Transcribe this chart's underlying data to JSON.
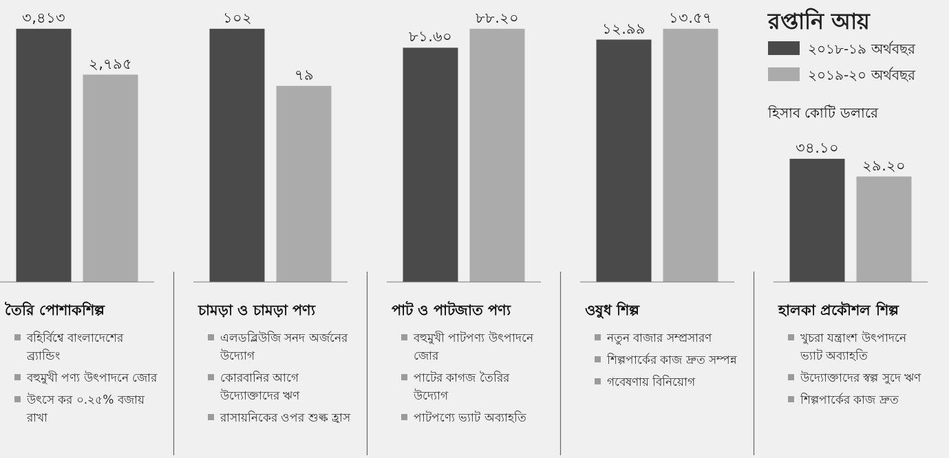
{
  "chart_data": [
    {
      "type": "bar",
      "title": "তৈরি পোশাকশিল্প",
      "categories": [
        null
      ],
      "series": [
        {
          "color": "#4a4a4a",
          "values": [
            3413
          ],
          "value_labels": [
            "৩,৪১৩"
          ]
        },
        {
          "color": "#ababab",
          "values": [
            2795
          ],
          "value_labels": [
            "২,৭৯৫"
          ]
        }
      ],
      "annotations": [
        "বহির্বিশ্বে বাংলাদেশের ব্র্যান্ডিং",
        "বহুমুখী পণ্য উৎপাদনে জোর",
        "উৎসে কর ০.২৫% বজায় রাখা"
      ]
    },
    {
      "type": "bar",
      "title": "চামড়া ও চামড়া পণ্য",
      "categories": [
        null
      ],
      "series": [
        {
          "color": "#4a4a4a",
          "values": [
            102
          ],
          "value_labels": [
            "১০২"
          ]
        },
        {
          "color": "#ababab",
          "values": [
            79
          ],
          "value_labels": [
            "৭৯"
          ]
        }
      ],
      "annotations": [
        "এলডব্লিউজি সনদ অর্জনের উদ্যোগ",
        "কোরবানির আগে উদ্যোক্তাদের ঋণ",
        "রাসায়নিকের ওপর শুল্ক হ্রাস"
      ]
    },
    {
      "type": "bar",
      "title": "পাট ও পাটজাত পণ্য",
      "categories": [
        null
      ],
      "series": [
        {
          "color": "#4a4a4a",
          "values": [
            81.6
          ],
          "value_labels": [
            "৮১.৬০"
          ]
        },
        {
          "color": "#ababab",
          "values": [
            88.2
          ],
          "value_labels": [
            "৮৮.২০"
          ]
        }
      ],
      "annotations": [
        "বহুমুখী পাটপণ্য উৎপাদনে জোর",
        "পাটের কাগজ তৈরির উদ্যোগ",
        "পাটপণ্যে ভ্যাট অব্যাহতি"
      ]
    },
    {
      "type": "bar",
      "title": "ওষুধ শিল্প",
      "categories": [
        null
      ],
      "series": [
        {
          "color": "#4a4a4a",
          "values": [
            12.99
          ],
          "value_labels": [
            "১২.৯৯"
          ]
        },
        {
          "color": "#ababab",
          "values": [
            13.57
          ],
          "value_labels": [
            "১৩.৫৭"
          ]
        }
      ],
      "annotations": [
        "নতুন বাজার সম্প্রসারণ",
        "শিল্পপার্কের কাজ দ্রুত সম্পন্ন",
        "গবেষণায় বিনিয়োগ"
      ]
    },
    {
      "type": "bar",
      "title": "হালকা প্রকৌশল শিল্প",
      "subtitle": "হিসাব কোটি ডলারে",
      "categories": [
        null
      ],
      "legend": "top",
      "legend_title": "রপ্তানি আয়",
      "series": [
        {
          "name": "২০১৮-১৯ অর্থবছর",
          "color": "#4a4a4a",
          "values": [
            34.1
          ],
          "value_labels": [
            "৩৪.১০"
          ]
        },
        {
          "name": "২০১৯-২০ অর্থবছর",
          "color": "#ababab",
          "values": [
            29.2
          ],
          "value_labels": [
            "২৯.২০"
          ]
        }
      ],
      "annotations": [
        "খুচরা যন্ত্রাংশ উৎপাদনে ভ্যাট অব্যাহতি",
        "উদ্যোক্তাদের স্বল্প সুদে ঋণ",
        "শিল্পপার্কের কাজ দ্রুত"
      ]
    }
  ]
}
